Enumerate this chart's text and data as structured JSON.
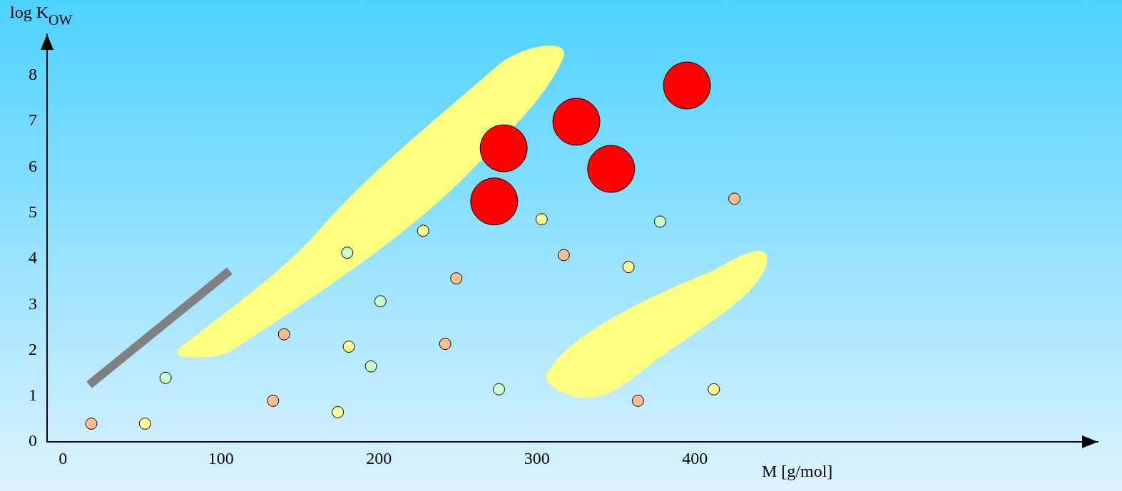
{
  "chart_data": {
    "type": "scatter",
    "xlabel": "M [g/mol]",
    "ylabel": "log K$_{OW}$",
    "xlim": [
      -10,
      655
    ],
    "ylim": [
      0,
      8.9
    ],
    "xticks": [
      0,
      100,
      200,
      300,
      400
    ],
    "yticks": [
      0,
      1,
      2,
      3,
      4,
      5,
      6,
      7,
      8
    ],
    "marker": "circle",
    "series": [
      {
        "color": "#fbbf8f",
        "x": [
          18,
          133,
          140,
          242,
          249,
          317,
          364,
          425
        ],
        "values": [
          0.4,
          0.9,
          2.35,
          2.14,
          3.57,
          4.08,
          0.9,
          5.31
        ]
      },
      {
        "color": "#ffff99",
        "x": [
          52,
          174,
          181,
          228,
          303,
          358,
          412
        ],
        "values": [
          0.4,
          0.65,
          2.08,
          4.61,
          4.86,
          3.82,
          1.15
        ]
      },
      {
        "color": "#ccffcc",
        "x": [
          65,
          180,
          195,
          201,
          276,
          378
        ],
        "values": [
          1.4,
          4.13,
          1.65,
          3.07,
          1.15,
          4.81
        ]
      },
      {
        "type": "bubble",
        "color": "#ff0000",
        "x": [
          273,
          279,
          325,
          347,
          395
        ],
        "values": [
          5.25,
          6.41,
          6.99,
          5.96,
          7.78
        ],
        "sizes": [
          1,
          1,
          1,
          1,
          1
        ]
      }
    ]
  }
}
